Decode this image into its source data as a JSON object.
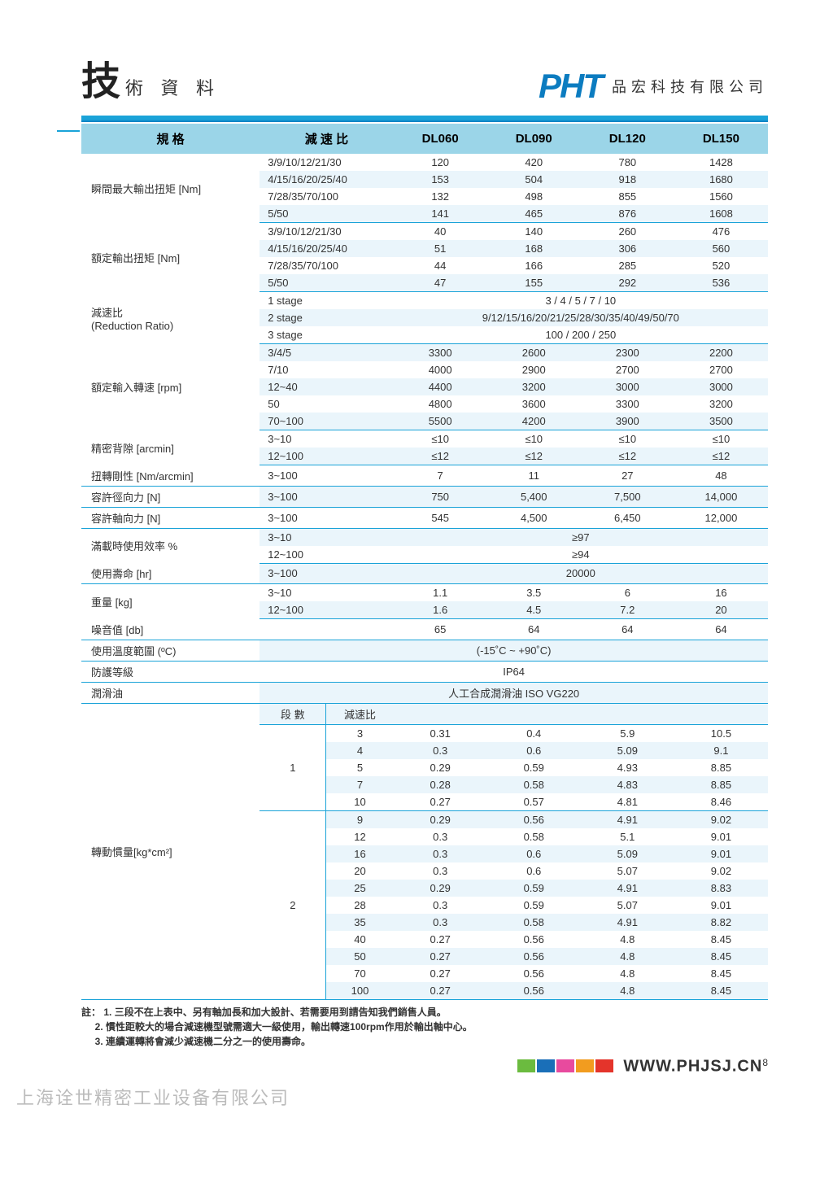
{
  "title": {
    "main": "技",
    "rest": "術 資 料"
  },
  "logo": {
    "brand": "PHT",
    "company": "品宏科技有限公司"
  },
  "table": {
    "headers": [
      "規  格",
      "減  速  比",
      "DL060",
      "DL090",
      "DL120",
      "DL150"
    ],
    "sections": [
      {
        "label": "瞬間最大輸出扭矩 [Nm]",
        "rows": [
          {
            "ratio": "3/9/10/12/21/30",
            "v": [
              "120",
              "420",
              "780",
              "1428"
            ]
          },
          {
            "ratio": "4/15/16/20/25/40",
            "v": [
              "153",
              "504",
              "918",
              "1680"
            ],
            "alt": true
          },
          {
            "ratio": "7/28/35/70/100",
            "v": [
              "132",
              "498",
              "855",
              "1560"
            ]
          },
          {
            "ratio": "5/50",
            "v": [
              "141",
              "465",
              "876",
              "1608"
            ],
            "alt": true
          }
        ]
      },
      {
        "label": "額定輸出扭矩 [Nm]",
        "rows": [
          {
            "ratio": "3/9/10/12/21/30",
            "v": [
              "40",
              "140",
              "260",
              "476"
            ]
          },
          {
            "ratio": "4/15/16/20/25/40",
            "v": [
              "51",
              "168",
              "306",
              "560"
            ],
            "alt": true
          },
          {
            "ratio": "7/28/35/70/100",
            "v": [
              "44",
              "166",
              "285",
              "520"
            ]
          },
          {
            "ratio": "5/50",
            "v": [
              "47",
              "155",
              "292",
              "536"
            ],
            "alt": true
          }
        ]
      },
      {
        "label": "減速比\n(Reduction Ratio)",
        "rows": [
          {
            "ratio": "1 stage",
            "span": "3 / 4 / 5 / 7 / 10"
          },
          {
            "ratio": "2 stage",
            "span": "9/12/15/16/20/21/25/28/30/35/40/49/50/70",
            "alt": true
          },
          {
            "ratio": "3 stage",
            "span": "100 / 200 / 250"
          }
        ]
      },
      {
        "label": "額定輸入轉速 [rpm]",
        "rows": [
          {
            "ratio": "3/4/5",
            "v": [
              "3300",
              "2600",
              "2300",
              "2200"
            ],
            "alt": true
          },
          {
            "ratio": "7/10",
            "v": [
              "4000",
              "2900",
              "2700",
              "2700"
            ]
          },
          {
            "ratio": "12~40",
            "v": [
              "4400",
              "3200",
              "3000",
              "3000"
            ],
            "alt": true
          },
          {
            "ratio": "50",
            "v": [
              "4800",
              "3600",
              "3300",
              "3200"
            ]
          },
          {
            "ratio": "70~100",
            "v": [
              "5500",
              "4200",
              "3900",
              "3500"
            ],
            "alt": true
          }
        ]
      },
      {
        "label": "精密背隙  [arcmin]",
        "rows": [
          {
            "ratio": "3~10",
            "v": [
              "≤10",
              "≤10",
              "≤10",
              "≤10"
            ]
          },
          {
            "ratio": "12~100",
            "v": [
              "≤12",
              "≤12",
              "≤12",
              "≤12"
            ],
            "alt": true
          }
        ]
      },
      {
        "label": "扭轉剛性  [Nm/arcmin]",
        "rows": [
          {
            "ratio": "3~100",
            "v": [
              "7",
              "11",
              "27",
              "48"
            ]
          }
        ]
      },
      {
        "label": "容許徑向力 [N]",
        "rows": [
          {
            "ratio": "3~100",
            "v": [
              "750",
              "5,400",
              "7,500",
              "14,000"
            ],
            "alt": true
          }
        ]
      },
      {
        "label": "容許軸向力 [N]",
        "rows": [
          {
            "ratio": "3~100",
            "v": [
              "545",
              "4,500",
              "6,450",
              "12,000"
            ]
          }
        ]
      },
      {
        "label": "滿載時使用效率  %",
        "rows": [
          {
            "ratio": "3~10",
            "span": "≥97",
            "alt": true
          },
          {
            "ratio": "12~100",
            "span": "≥94"
          }
        ]
      },
      {
        "label": "使用壽命 [hr]",
        "rows": [
          {
            "ratio": "3~100",
            "span": "20000",
            "alt": true
          }
        ]
      },
      {
        "label": "重量  [kg]",
        "rows": [
          {
            "ratio": "3~10",
            "v": [
              "1.1",
              "3.5",
              "6",
              "16"
            ]
          },
          {
            "ratio": "12~100",
            "v": [
              "1.6",
              "4.5",
              "7.2",
              "20"
            ],
            "alt": true
          }
        ]
      },
      {
        "label": "噪音值 [db]",
        "noratio": true,
        "rows": [
          {
            "v": [
              "65",
              "64",
              "64",
              "64"
            ]
          }
        ]
      },
      {
        "label": "使用溫度範圍 (ºC)",
        "noratio": true,
        "rows": [
          {
            "span": "(-15˚C ~ +90˚C)",
            "alt": true
          }
        ]
      },
      {
        "label": "防護等級",
        "noratio": true,
        "rows": [
          {
            "span": "IP64"
          }
        ]
      },
      {
        "label": "潤滑油",
        "noratio": true,
        "rows": [
          {
            "span": "人工合成潤滑油 ISO VG220",
            "alt": true
          }
        ]
      }
    ],
    "inertia": {
      "label": "轉動慣量[kg*cm²]",
      "subheaders": [
        "段 數",
        "減速比"
      ],
      "groups": [
        {
          "stage": "1",
          "rows": [
            {
              "r": "3",
              "v": [
                "0.31",
                "0.4",
                "5.9",
                "10.5"
              ]
            },
            {
              "r": "4",
              "v": [
                "0.3",
                "0.6",
                "5.09",
                "9.1"
              ],
              "alt": true
            },
            {
              "r": "5",
              "v": [
                "0.29",
                "0.59",
                "4.93",
                "8.85"
              ]
            },
            {
              "r": "7",
              "v": [
                "0.28",
                "0.58",
                "4.83",
                "8.85"
              ],
              "alt": true
            },
            {
              "r": "10",
              "v": [
                "0.27",
                "0.57",
                "4.81",
                "8.46"
              ]
            }
          ]
        },
        {
          "stage": "2",
          "rows": [
            {
              "r": "9",
              "v": [
                "0.29",
                "0.56",
                "4.91",
                "9.02"
              ],
              "alt": true
            },
            {
              "r": "12",
              "v": [
                "0.3",
                "0.58",
                "5.1",
                "9.01"
              ]
            },
            {
              "r": "16",
              "v": [
                "0.3",
                "0.6",
                "5.09",
                "9.01"
              ],
              "alt": true
            },
            {
              "r": "20",
              "v": [
                "0.3",
                "0.6",
                "5.07",
                "9.02"
              ]
            },
            {
              "r": "25",
              "v": [
                "0.29",
                "0.59",
                "4.91",
                "8.83"
              ],
              "alt": true
            },
            {
              "r": "28",
              "v": [
                "0.3",
                "0.59",
                "5.07",
                "9.01"
              ]
            },
            {
              "r": "35",
              "v": [
                "0.3",
                "0.58",
                "4.91",
                "8.82"
              ],
              "alt": true
            },
            {
              "r": "40",
              "v": [
                "0.27",
                "0.56",
                "4.8",
                "8.45"
              ]
            },
            {
              "r": "50",
              "v": [
                "0.27",
                "0.56",
                "4.8",
                "8.45"
              ],
              "alt": true
            },
            {
              "r": "70",
              "v": [
                "0.27",
                "0.56",
                "4.8",
                "8.45"
              ]
            },
            {
              "r": "100",
              "v": [
                "0.27",
                "0.56",
                "4.8",
                "8.45"
              ],
              "alt": true
            }
          ]
        }
      ]
    }
  },
  "notes": {
    "prefix": "註：",
    "lines": [
      "1. 三段不在上表中、另有軸加長和加大設計、若需要用到請告知我們銷售人員。",
      "2. 慣性距較大的場合減速機型號需適大一級使用，輸出轉速100rpm作用於輸出軸中心。",
      "3. 連續運轉將會減少減速機二分之一的使用壽命。"
    ]
  },
  "footer": {
    "colors": [
      "#6bbb3f",
      "#1a6fb8",
      "#e84a9e",
      "#f29c1f",
      "#e4342b"
    ],
    "url": "WWW.PHJSJ.CN",
    "page": "8"
  },
  "watermark": "上海诠世精密工业设备有限公司"
}
